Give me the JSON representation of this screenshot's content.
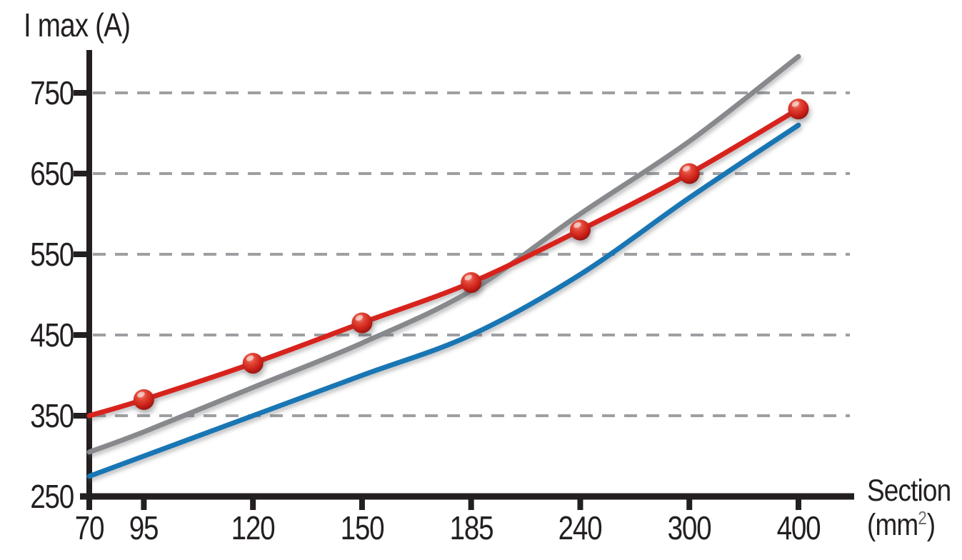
{
  "colors": {
    "axis": "#231f20",
    "text": "#231f20",
    "grid": "#9d9fa2",
    "red_series": "#d8231d",
    "gray_series": "#87898c",
    "blue_series": "#1976b4",
    "marker_highlight": "#ef8d80",
    "marker_mid": "#cc2018",
    "marker_dark": "#7a0f0d"
  },
  "chart_data": {
    "type": "line",
    "title": "",
    "ylabel": "I max (A)",
    "xlabel": "Section",
    "xunit_prefix": "(mm",
    "xunit_sup": "2",
    "xunit_suffix": ")",
    "x_categories": [
      70,
      95,
      120,
      150,
      185,
      240,
      300,
      400
    ],
    "y_ticks": [
      250,
      350,
      450,
      550,
      650,
      750
    ],
    "ylim": [
      250,
      800
    ],
    "grid": "horizontal-dashed-at-yticks-above-250",
    "legend": "none",
    "series": [
      {
        "name": "gray-curve",
        "color": "#87898c",
        "markers": false,
        "values": [
          305,
          330,
          385,
          440,
          505,
          600,
          690,
          795
        ]
      },
      {
        "name": "blue-curve",
        "color": "#1976b4",
        "markers": false,
        "values": [
          275,
          300,
          350,
          400,
          450,
          525,
          620,
          710
        ]
      },
      {
        "name": "red-curve",
        "color": "#d8231d",
        "markers": true,
        "marker_categories": [
          95,
          120,
          150,
          185,
          240,
          300,
          400
        ],
        "values": [
          350,
          370,
          415,
          465,
          515,
          580,
          650,
          730
        ]
      }
    ]
  }
}
